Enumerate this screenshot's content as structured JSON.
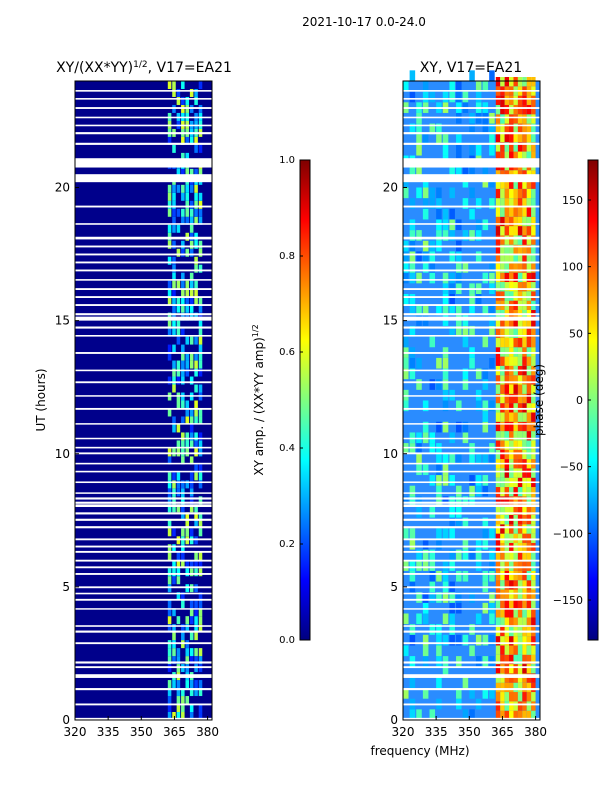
{
  "figure": {
    "suptitle": "2021-10-17 0.0-24.0",
    "xlabel": "frequency (MHz)",
    "colormap": "jet"
  },
  "chart_data": [
    {
      "type": "heatmap",
      "title_base": "XY/(XX*YY)",
      "title_exp": "1/2",
      "title_suffix": ", V17=EA21",
      "ylabel": "UT (hours)",
      "xlim": [
        320,
        382
      ],
      "ylim": [
        0,
        24
      ],
      "xticks": [
        320,
        335,
        350,
        365,
        380
      ],
      "yticks": [
        0,
        5,
        10,
        15,
        20
      ],
      "colorbar": {
        "label_base": "XY amp. / (XX*YY amp)",
        "label_exp": "1/2",
        "range": [
          0.0,
          1.0
        ],
        "ticks": [
          "0.0",
          "0.2",
          "0.4",
          "0.6",
          "0.8",
          "1.0"
        ],
        "tick_values": [
          0.0,
          0.2,
          0.4,
          0.6,
          0.8,
          1.0
        ]
      },
      "description_values": {
        "background_value": 0.02,
        "signal_band_mhz": [
          362,
          378
        ],
        "signal_value_range": [
          0.15,
          0.6
        ]
      }
    },
    {
      "type": "heatmap",
      "title": "XY, V17=EA21",
      "xlim": [
        320,
        382
      ],
      "ylim": [
        0,
        24
      ],
      "xticks": [
        320,
        335,
        350,
        365,
        380
      ],
      "yticks": [
        0,
        5,
        10,
        15,
        20
      ],
      "colorbar": {
        "label": "phase (deg)",
        "range": [
          -180,
          180
        ],
        "ticks": [
          "150",
          "100",
          "50",
          "0",
          "−50",
          "−100",
          "−150"
        ],
        "tick_values": [
          150,
          100,
          50,
          0,
          -50,
          -100,
          -150
        ]
      },
      "description_values": {
        "background_phase_deg": -60,
        "hot_band_mhz": [
          362,
          380
        ],
        "hot_phase_deg": 150
      }
    }
  ],
  "flagged_gaps_hours": [
    [
      0.02,
      0.08
    ],
    [
      0.55,
      0.62
    ],
    [
      1.12,
      1.2
    ],
    [
      1.58,
      1.72
    ],
    [
      1.95,
      2.02
    ],
    [
      2.12,
      2.2
    ],
    [
      2.85,
      2.92
    ],
    [
      3.28,
      3.36
    ],
    [
      3.5,
      3.56
    ],
    [
      4.15,
      4.2
    ],
    [
      4.48,
      4.55
    ],
    [
      4.72,
      4.78
    ],
    [
      4.95,
      5.02
    ],
    [
      5.45,
      5.52
    ],
    [
      5.7,
      5.77
    ],
    [
      5.95,
      6.02
    ],
    [
      6.28,
      6.35
    ],
    [
      6.48,
      6.55
    ],
    [
      6.75,
      6.82
    ],
    [
      7.2,
      7.28
    ],
    [
      7.48,
      7.56
    ],
    [
      7.72,
      7.8
    ],
    [
      8.0,
      8.1
    ],
    [
      8.12,
      8.2
    ],
    [
      8.28,
      8.36
    ],
    [
      8.5,
      8.55
    ],
    [
      8.9,
      8.96
    ],
    [
      9.3,
      9.36
    ],
    [
      9.6,
      9.66
    ],
    [
      9.98,
      10.05
    ],
    [
      10.2,
      10.26
    ],
    [
      10.55,
      10.6
    ],
    [
      11.1,
      11.15
    ],
    [
      11.65,
      11.72
    ],
    [
      12.15,
      12.2
    ],
    [
      12.65,
      12.72
    ],
    [
      13.1,
      13.16
    ],
    [
      13.75,
      13.82
    ],
    [
      14.4,
      14.46
    ],
    [
      14.7,
      14.78
    ],
    [
      15.0,
      15.15
    ],
    [
      15.2,
      15.28
    ],
    [
      15.55,
      15.62
    ],
    [
      15.85,
      15.92
    ],
    [
      16.15,
      16.22
    ],
    [
      16.5,
      16.56
    ],
    [
      16.85,
      16.92
    ],
    [
      17.15,
      17.22
    ],
    [
      17.45,
      17.52
    ],
    [
      17.75,
      17.82
    ],
    [
      18.05,
      18.15
    ],
    [
      18.6,
      18.66
    ],
    [
      19.25,
      19.32
    ],
    [
      20.2,
      20.5
    ],
    [
      20.75,
      21.1
    ],
    [
      21.6,
      21.68
    ],
    [
      22.0,
      22.08
    ],
    [
      22.3,
      22.36
    ],
    [
      22.6,
      22.66
    ],
    [
      22.95,
      23.02
    ],
    [
      23.3,
      23.36
    ],
    [
      23.6,
      23.66
    ]
  ]
}
